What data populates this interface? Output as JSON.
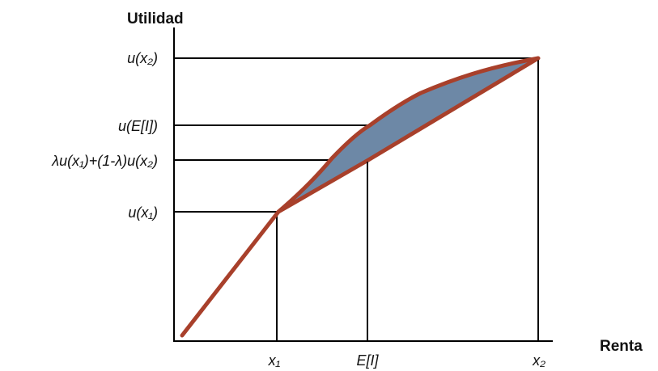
{
  "chart_data": {
    "type": "line",
    "ylabel": "Utilidad",
    "xlabel": "Renta",
    "x_ticks": [
      "x₁",
      "E[I]",
      "x₂"
    ],
    "y_ticks": [
      "u(x₂)",
      "u(E[I])",
      "λu(x₁)+(1-λ)u(x₂)",
      "u(x₁)"
    ],
    "curves": [
      "utility-curve",
      "chord"
    ],
    "colors": {
      "curve": "#A8402B",
      "fill": "#6D88A6",
      "axis": "#000000",
      "guide": "#000000"
    }
  }
}
